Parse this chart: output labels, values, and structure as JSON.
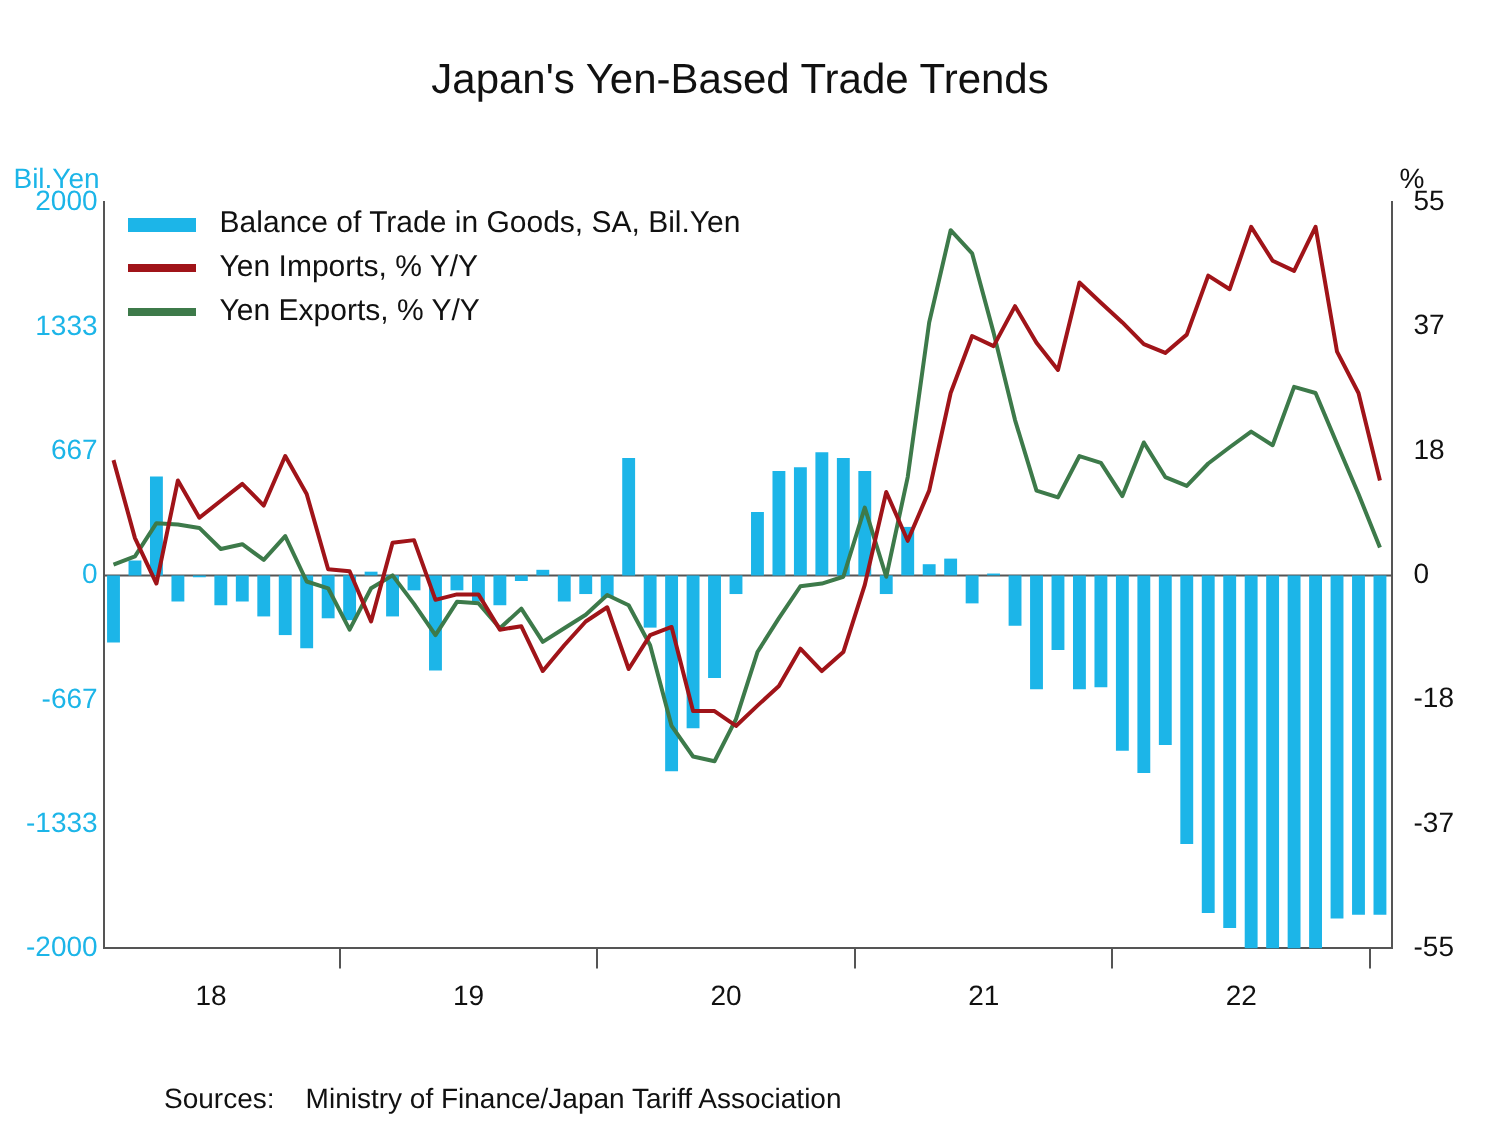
{
  "chart_data": {
    "type": "bar",
    "title": "Japan's Yen-Based Trade Trends",
    "ylabel": "Bil.Yen",
    "y2label": "%",
    "annotations": [
      "Sources:    Ministry of Finance/Japan Tariff Association"
    ],
    "x": [
      "2018-02-15",
      "2018-03-15",
      "2018-04-15",
      "2018-05-15",
      "2018-06-15",
      "2018-07-15",
      "2018-08-15",
      "2018-09-15",
      "2018-10-15",
      "2018-11-15",
      "2018-12-15",
      "2019-01-15",
      "2019-02-15",
      "2019-03-15",
      "2019-04-15",
      "2019-05-15",
      "2019-06-15",
      "2019-07-15",
      "2019-08-15",
      "2019-09-15",
      "2019-10-15",
      "2019-11-15",
      "2019-12-15",
      "2020-01-15",
      "2020-02-15",
      "2020-03-15",
      "2020-04-15",
      "2020-05-15",
      "2020-06-15",
      "2020-07-15",
      "2020-08-15",
      "2020-09-15",
      "2020-10-15",
      "2020-11-15",
      "2020-12-15",
      "2021-01-15",
      "2021-02-15",
      "2021-03-15",
      "2021-04-15",
      "2021-05-15",
      "2021-06-15",
      "2021-07-15",
      "2021-08-15",
      "2021-09-15",
      "2021-10-15",
      "2021-11-15",
      "2021-12-15",
      "2022-01-15",
      "2022-02-15",
      "2022-03-15",
      "2022-04-15",
      "2022-05-15",
      "2022-06-15",
      "2022-07-15",
      "2022-08-15",
      "2022-09-15",
      "2022-10-15",
      "2022-11-15",
      "2022-12-15",
      "2023-01-15"
    ],
    "series": [
      {
        "name": "Balance of Trade in Goods, SA, Bil.Yen",
        "color": "#1cb5e8",
        "values": [
          -360,
          80,
          530,
          -140,
          -10,
          -160,
          -140,
          -220,
          -320,
          -390,
          -230,
          -240,
          20,
          -220,
          -80,
          -510,
          -80,
          -140,
          -160,
          -30,
          30,
          -140,
          -100,
          -120,
          630,
          -280,
          -1050,
          -820,
          -550,
          -100,
          340,
          560,
          580,
          660,
          630,
          560,
          -100,
          260,
          60,
          90,
          -150,
          10,
          -270,
          -610,
          -400,
          -610,
          -600,
          -940,
          -1060,
          -910,
          -1440,
          -1810,
          -1890,
          -2000,
          -2000,
          -2000,
          -2000,
          -1840,
          -1820,
          -1820
        ]
      },
      {
        "name": "Yen Imports, % Y/Y",
        "type": "line",
        "axis": "y2",
        "color": "#a01419",
        "values": [
          17.0,
          5.5,
          -1.2,
          14.0,
          8.5,
          11.0,
          13.5,
          10.3,
          17.6,
          12.0,
          0.9,
          0.6,
          -6.8,
          4.8,
          5.2,
          -3.6,
          -2.8,
          -2.8,
          -8.0,
          -7.5,
          -14.1,
          -10.3,
          -6.8,
          -4.7,
          -13.8,
          -8.8,
          -7.6,
          -20.0,
          -20.0,
          -22.2,
          -19.2,
          -16.3,
          -10.8,
          -14.1,
          -11.3,
          -1.4,
          12.3,
          5.1,
          12.5,
          26.9,
          35.3,
          33.8,
          39.7,
          34.3,
          30.3,
          43.2,
          40.2,
          37.3,
          34.1,
          32.8,
          35.5,
          44.2,
          42.2,
          51.4,
          46.4,
          44.9,
          51.4,
          33.0,
          26.9,
          14.0
        ]
      },
      {
        "name": "Yen Exports, % Y/Y",
        "type": "line",
        "axis": "y2",
        "color": "#3d7a4a",
        "values": [
          1.6,
          2.8,
          7.7,
          7.5,
          7.0,
          3.9,
          4.6,
          2.3,
          5.8,
          -0.9,
          -1.9,
          -8.0,
          -1.9,
          0,
          -4.2,
          -8.8,
          -3.9,
          -4.1,
          -7.8,
          -4.9,
          -9.8,
          -7.8,
          -5.8,
          -2.9,
          -4.4,
          -10.3,
          -22.2,
          -26.7,
          -27.4,
          -21.2,
          -11.3,
          -6.3,
          -1.6,
          -1.2,
          -0.2,
          10.0,
          -0.2,
          14.5,
          37.3,
          50.9,
          47.5,
          35.8,
          22.9,
          12.5,
          11.5,
          17.6,
          16.6,
          11.7,
          19.6,
          14.5,
          13.2,
          16.5,
          18.9,
          21.2,
          19.2,
          27.8,
          26.9,
          19.4,
          12.0,
          4.1
        ]
      }
    ],
    "xlim": [
      "2018-02-01",
      "2023-02-01"
    ],
    "xticks": [
      {
        "value": "2018-07-01",
        "label": "18"
      },
      {
        "value": "2019-01-01",
        "label": null
      },
      {
        "value": "2019-07-01",
        "label": "19"
      },
      {
        "value": "2020-01-01",
        "label": null
      },
      {
        "value": "2020-07-01",
        "label": "20"
      },
      {
        "value": "2021-01-01",
        "label": null
      },
      {
        "value": "2021-07-01",
        "label": "21"
      },
      {
        "value": "2022-01-01",
        "label": null
      },
      {
        "value": "2022-07-01",
        "label": "22"
      },
      {
        "value": "2023-01-01",
        "label": null
      }
    ],
    "ylim": [
      -2000,
      2000
    ],
    "yticks": [
      -2000,
      -1333,
      -667,
      0,
      667,
      1333,
      2000
    ],
    "y2lim": [
      -55,
      55
    ],
    "y2ticks": [
      -55,
      {
        "value": -36.67,
        "label": "-37"
      },
      {
        "value": -18.33,
        "label": "-18"
      },
      0,
      {
        "value": 18.33,
        "label": "18"
      },
      {
        "value": 36.67,
        "label": "37"
      },
      55
    ],
    "ref_lines": [
      {
        "axis": "y",
        "value": 0,
        "color": "#555555"
      }
    ],
    "grid": false,
    "legend": "top left",
    "marker": "none",
    "line_style": "solid"
  }
}
